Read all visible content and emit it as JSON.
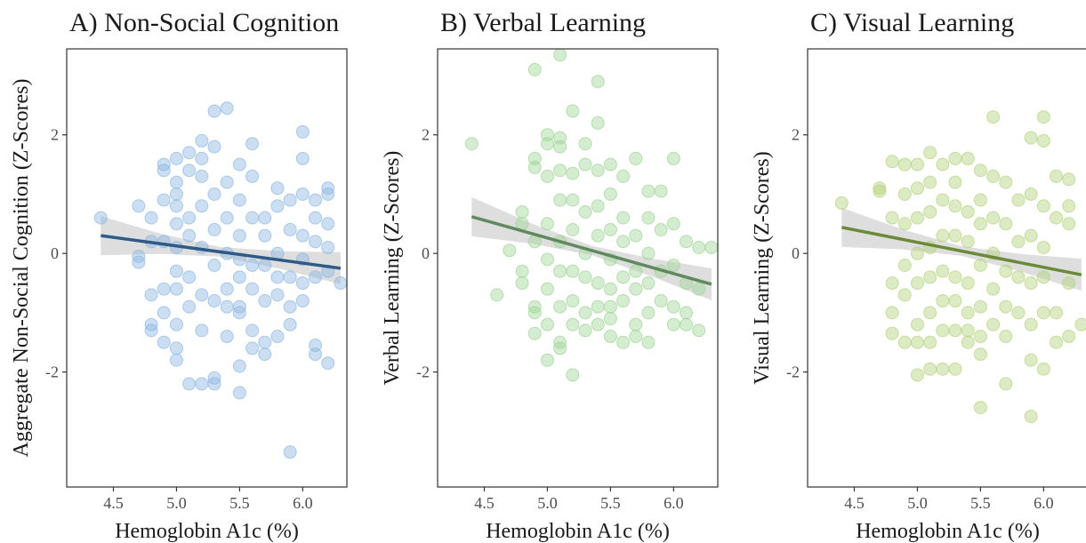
{
  "chart_data": [
    {
      "type": "scatter",
      "title": "A) Non-Social Cognition",
      "xlabel": "Hemoglobin A1c (%)",
      "ylabel": "Aggregate Non-Social Cognition (Z-Scores)",
      "color": "#8fb8e2",
      "fit_color": "#2f5a86",
      "band_color": "#c8c8c8",
      "xlim": [
        4.13,
        6.35
      ],
      "ylim": [
        -3.94,
        3.45
      ],
      "xticks": [
        4.5,
        {
          "value": 5,
          "label": "5.0"
        },
        5.5,
        {
          "value": 6,
          "label": "6.0"
        }
      ],
      "yticks": [
        -2,
        0,
        2
      ],
      "x": [
        4.4,
        4.7,
        4.7,
        4.7,
        4.8,
        4.8,
        4.8,
        4.8,
        4.8,
        4.9,
        4.9,
        4.9,
        4.9,
        4.9,
        4.9,
        4.9,
        5.0,
        5.0,
        5.0,
        5.0,
        5.0,
        5.0,
        5.0,
        5.0,
        5.0,
        5.0,
        5.0,
        5.1,
        5.1,
        5.1,
        5.1,
        5.1,
        5.1,
        5.1,
        5.2,
        5.2,
        5.2,
        5.2,
        5.2,
        5.2,
        5.2,
        5.2,
        5.3,
        5.3,
        5.3,
        5.3,
        5.3,
        5.3,
        5.3,
        5.3,
        5.4,
        5.4,
        5.4,
        5.4,
        5.4,
        5.4,
        5.4,
        5.5,
        5.5,
        5.5,
        5.5,
        5.5,
        5.5,
        5.5,
        5.5,
        5.5,
        5.6,
        5.6,
        5.6,
        5.6,
        5.6,
        5.6,
        5.6,
        5.7,
        5.7,
        5.7,
        5.7,
        5.7,
        5.7,
        5.8,
        5.8,
        5.8,
        5.8,
        5.8,
        5.8,
        5.9,
        5.9,
        5.9,
        5.9,
        5.9,
        5.9,
        6.0,
        6.0,
        6.0,
        6.0,
        6.0,
        6.0,
        6.0,
        6.1,
        6.1,
        6.1,
        6.1,
        6.1,
        6.1,
        6.2,
        6.2,
        6.2,
        6.2,
        6.2,
        6.2,
        6.3
      ],
      "y": [
        0.6,
        -0.15,
        0.8,
        -0.05,
        0.2,
        -0.7,
        -1.3,
        0.6,
        -1.2,
        1.4,
        1.5,
        -1.5,
        -0.6,
        0.9,
        0.2,
        -1.0,
        1.2,
        1.0,
        0.5,
        0.1,
        -0.3,
        -1.2,
        -1.6,
        -1.8,
        0.8,
        -0.6,
        1.6,
        1.4,
        0.6,
        -0.9,
        -2.2,
        1.7,
        0.3,
        -0.4,
        1.9,
        1.3,
        0.8,
        -0.7,
        -1.3,
        -2.2,
        0.1,
        1.6,
        2.4,
        1.0,
        0.4,
        -0.2,
        -0.8,
        -2.1,
        -2.2,
        1.8,
        2.45,
        1.2,
        0.6,
        -0.6,
        -1.4,
        0.0,
        -0.9,
        1.5,
        0.9,
        0.3,
        -0.4,
        -0.9,
        -1.0,
        -1.9,
        -2.35,
        -0.1,
        1.85,
        1.3,
        0.6,
        -0.2,
        -0.6,
        -1.3,
        -1.6,
        0.6,
        -0.2,
        -0.8,
        -1.5,
        -1.7,
        0.3,
        1.1,
        0.8,
        0.0,
        -0.4,
        -1.4,
        -0.7,
        0.9,
        0.4,
        -0.4,
        -0.9,
        -3.35,
        -1.2,
        2.05,
        1.6,
        1.0,
        0.3,
        -0.1,
        -0.5,
        -0.8,
        0.9,
        0.6,
        -1.55,
        -1.7,
        -0.4,
        0.2,
        1.1,
        1.0,
        0.5,
        0.1,
        -0.3,
        -1.85,
        -0.5
      ],
      "fit": {
        "x": [
          4.4,
          6.3
        ],
        "y": [
          0.3,
          -0.25
        ]
      },
      "ci": {
        "x": [
          4.4,
          4.875,
          5.35,
          5.825,
          6.3
        ],
        "lower": [
          -0.03,
          -0.007,
          -0.055,
          -0.262,
          -0.52
        ],
        "upper": [
          0.63,
          0.333,
          0.105,
          0.038,
          0.02
        ]
      }
    },
    {
      "type": "scatter",
      "title": "B) Verbal Learning",
      "xlabel": "Hemoglobin A1c (%)",
      "ylabel": "Verbal Learning (Z-Scores)",
      "color": "#9fd496",
      "fit_color": "#5e8a5e",
      "band_color": "#c8c8c8",
      "xlim": [
        4.13,
        6.35
      ],
      "ylim": [
        -3.94,
        3.45
      ],
      "xticks": [
        4.5,
        {
          "value": 5,
          "label": "5.0"
        },
        5.5,
        {
          "value": 6,
          "label": "6.0"
        }
      ],
      "yticks": [
        -2,
        0,
        2
      ],
      "x": [
        4.4,
        4.6,
        4.7,
        4.8,
        4.8,
        4.8,
        4.8,
        4.9,
        4.9,
        4.9,
        4.9,
        4.9,
        4.9,
        4.9,
        5.0,
        5.0,
        5.0,
        5.0,
        5.0,
        5.0,
        5.0,
        5.0,
        5.1,
        5.1,
        5.1,
        5.1,
        5.1,
        5.1,
        5.1,
        5.1,
        5.1,
        5.1,
        5.2,
        5.2,
        5.2,
        5.2,
        5.2,
        5.2,
        5.2,
        5.2,
        5.3,
        5.3,
        5.3,
        5.3,
        5.3,
        5.3,
        5.3,
        5.4,
        5.4,
        5.4,
        5.4,
        5.4,
        5.4,
        5.4,
        5.4,
        5.5,
        5.5,
        5.5,
        5.5,
        5.5,
        5.5,
        5.5,
        5.5,
        5.6,
        5.6,
        5.6,
        5.6,
        5.6,
        5.6,
        5.7,
        5.7,
        5.7,
        5.7,
        5.7,
        5.7,
        5.8,
        5.8,
        5.8,
        5.8,
        5.8,
        5.8,
        5.9,
        5.9,
        5.9,
        5.9,
        6.0,
        6.0,
        6.0,
        6.0,
        6.0,
        6.1,
        6.1,
        6.1,
        6.1,
        6.2,
        6.2,
        6.2,
        6.3
      ],
      "y": [
        1.85,
        -0.7,
        0.05,
        0.7,
        0.5,
        -0.3,
        -0.5,
        3.1,
        1.6,
        1.45,
        -0.9,
        -1.0,
        -1.35,
        0.2,
        1.85,
        1.3,
        0.5,
        -0.1,
        -0.6,
        -1.2,
        -1.8,
        2.0,
        3.35,
        1.95,
        1.8,
        1.4,
        0.9,
        0.2,
        -0.3,
        -0.9,
        -1.5,
        -1.6,
        2.4,
        1.35,
        0.9,
        0.4,
        -0.3,
        -0.8,
        -1.2,
        -2.05,
        1.85,
        1.5,
        0.7,
        0.0,
        -0.4,
        -1.0,
        -1.3,
        2.9,
        2.2,
        1.4,
        0.8,
        0.3,
        -0.5,
        -1.2,
        -0.9,
        1.5,
        1.0,
        0.4,
        -0.1,
        -0.6,
        -0.9,
        -1.1,
        -1.4,
        1.3,
        0.6,
        0.2,
        -0.4,
        -0.8,
        -1.5,
        1.6,
        0.3,
        -0.3,
        -0.6,
        -1.4,
        -1.2,
        1.05,
        0.6,
        0.0,
        -0.5,
        -1.0,
        -1.5,
        1.05,
        0.4,
        -0.3,
        -0.8,
        1.6,
        0.5,
        -0.2,
        -0.9,
        -1.2,
        0.2,
        -0.5,
        -1.2,
        -1.0,
        0.1,
        -0.6,
        -1.3,
        0.1
      ],
      "fit": {
        "x": [
          4.4,
          6.3
        ],
        "y": [
          0.62,
          -0.52
        ]
      },
      "ci": {
        "x": [
          4.4,
          4.875,
          5.35,
          5.825,
          6.3
        ],
        "lower": [
          0.29,
          0.165,
          -0.03,
          -0.385,
          -0.79
        ],
        "upper": [
          0.95,
          0.505,
          0.13,
          -0.085,
          -0.25
        ]
      }
    },
    {
      "type": "scatter",
      "title": "C) Visual Learning",
      "xlabel": "Hemoglobin A1c (%)",
      "ylabel": "Visual Learning (Z-Scores)",
      "color": "#b3d37c",
      "fit_color": "#6a8a38",
      "band_color": "#c8c8c8",
      "xlim": [
        4.13,
        6.35
      ],
      "ylim": [
        -3.94,
        3.45
      ],
      "xticks": [
        4.5,
        {
          "value": 5,
          "label": "5.0"
        },
        5.5,
        {
          "value": 6,
          "label": "6.0"
        }
      ],
      "yticks": [
        -2,
        0,
        2
      ],
      "x": [
        4.4,
        4.7,
        4.7,
        4.8,
        4.8,
        4.8,
        4.8,
        4.8,
        4.9,
        4.9,
        4.9,
        4.9,
        4.9,
        4.9,
        5.0,
        5.0,
        5.0,
        5.0,
        5.0,
        5.0,
        5.0,
        5.0,
        5.1,
        5.1,
        5.1,
        5.1,
        5.1,
        5.1,
        5.1,
        5.1,
        5.2,
        5.2,
        5.2,
        5.2,
        5.2,
        5.2,
        5.2,
        5.3,
        5.3,
        5.3,
        5.3,
        5.3,
        5.3,
        5.3,
        5.3,
        5.4,
        5.4,
        5.4,
        5.4,
        5.4,
        5.4,
        5.4,
        5.5,
        5.5,
        5.5,
        5.5,
        5.5,
        5.5,
        5.5,
        5.5,
        5.6,
        5.6,
        5.6,
        5.6,
        5.6,
        5.6,
        5.7,
        5.7,
        5.7,
        5.7,
        5.7,
        5.7,
        5.8,
        5.8,
        5.8,
        5.8,
        5.9,
        5.9,
        5.9,
        5.9,
        5.9,
        5.9,
        5.9,
        6.0,
        6.0,
        6.0,
        6.0,
        6.0,
        6.0,
        6.0,
        6.1,
        6.1,
        6.1,
        6.1,
        6.2,
        6.2,
        6.2,
        6.2,
        6.2,
        6.3
      ],
      "y": [
        0.85,
        1.1,
        1.05,
        1.55,
        -0.5,
        -1.0,
        -1.35,
        0.6,
        1.5,
        0.5,
        -0.2,
        -0.7,
        -1.5,
        1.0,
        1.5,
        1.1,
        0.6,
        0.0,
        -0.5,
        -1.2,
        -1.5,
        -2.05,
        1.7,
        1.2,
        0.7,
        0.1,
        -0.4,
        -1.0,
        -1.95,
        -1.5,
        1.5,
        0.9,
        0.3,
        -0.3,
        -0.8,
        -1.3,
        -1.95,
        1.6,
        1.2,
        0.8,
        0.3,
        -0.4,
        -0.8,
        -1.3,
        -1.95,
        1.6,
        0.7,
        0.2,
        -0.5,
        -1.0,
        -1.3,
        -1.5,
        1.4,
        0.9,
        0.5,
        -0.2,
        -0.9,
        -1.7,
        -2.6,
        -1.4,
        2.3,
        1.3,
        0.6,
        0.0,
        -0.6,
        -1.2,
        1.2,
        0.5,
        -0.3,
        -0.9,
        -1.4,
        -2.2,
        0.9,
        0.2,
        -0.4,
        -1.0,
        1.95,
        1.0,
        0.3,
        -0.5,
        -1.2,
        -2.75,
        -1.8,
        2.3,
        1.9,
        0.8,
        0.1,
        -0.4,
        -1.0,
        -1.95,
        1.3,
        0.6,
        -1.0,
        -1.5,
        1.25,
        0.8,
        0.5,
        -0.5,
        -1.4,
        -1.2
      ],
      "fit": {
        "x": [
          4.4,
          6.3
        ],
        "y": [
          0.44,
          -0.36
        ]
      },
      "ci": {
        "x": [
          4.4,
          4.875,
          5.35,
          5.825,
          6.3
        ],
        "lower": [
          0.11,
          0.07,
          -0.04,
          -0.31,
          -0.63
        ],
        "upper": [
          0.77,
          0.41,
          0.12,
          -0.01,
          -0.09
        ]
      }
    }
  ]
}
